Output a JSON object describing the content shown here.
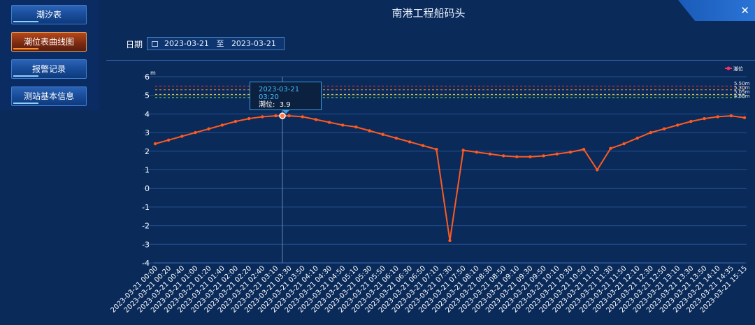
{
  "sidebar": {
    "items": [
      {
        "label": "潮汐表",
        "active": false
      },
      {
        "label": "潮位表曲线图",
        "active": true
      },
      {
        "label": "报警记录",
        "active": false
      },
      {
        "label": "测站基本信息",
        "active": false
      }
    ]
  },
  "header": {
    "title": "南港工程船码头",
    "close": "✕"
  },
  "filter": {
    "date_label": "日期",
    "start": "2023-03-21",
    "sep": "至",
    "end": "2023-03-21"
  },
  "tooltip": {
    "time": "2023-03-21 03:20",
    "label": "潮位:",
    "value": "3.9"
  },
  "colors": {
    "bg": "#0a2a5a",
    "series": "#ff5a1f",
    "accent": "#3ec0ff"
  },
  "chart_data": {
    "type": "line",
    "ylabel": "m",
    "ylim": [
      -4,
      6
    ],
    "yticks": [
      -4,
      -3,
      -2,
      -1,
      0,
      1,
      2,
      3,
      4,
      5,
      6
    ],
    "grid": true,
    "legend": {
      "position": "top-right",
      "entries": [
        "潮位"
      ]
    },
    "thresholds": [
      {
        "label": "5.50m",
        "value": 5.5,
        "color": "#ff3030"
      },
      {
        "label": "5.30m",
        "value": 5.3,
        "color": "#ff8c1a"
      },
      {
        "label": "5.05m",
        "value": 5.05,
        "color": "#ffd21a"
      },
      {
        "label": "4.88m",
        "value": 4.88,
        "color": "#7fe04a"
      }
    ],
    "x_tick_labels": [
      "2023-03-21 00:00",
      "2023-03-21 00:20",
      "2023-03-21 00:40",
      "2023-03-21 01:00",
      "2023-03-21 01:20",
      "2023-03-21 01:40",
      "2023-03-21 02:00",
      "2023-03-21 02:20",
      "2023-03-21 02:40",
      "2023-03-21 03:10",
      "2023-03-21 03:30",
      "2023-03-21 03:50",
      "2023-03-21 04:10",
      "2023-03-21 04:30",
      "2023-03-21 04:50",
      "2023-03-21 05:10",
      "2023-03-21 05:30",
      "2023-03-21 05:50",
      "2023-03-21 06:10",
      "2023-03-21 06:30",
      "2023-03-21 06:50",
      "2023-03-21 07:10",
      "2023-03-21 07:30",
      "2023-03-21 07:50",
      "2023-03-21 08:10",
      "2023-03-21 08:30",
      "2023-03-21 08:50",
      "2023-03-21 09:10",
      "2023-03-21 09:30",
      "2023-03-21 09:50",
      "2023-03-21 10:10",
      "2023-03-21 10:30",
      "2023-03-21 10:50",
      "2023-03-21 11:10",
      "2023-03-21 11:30",
      "2023-03-21 11:50",
      "2023-03-21 12:10",
      "2023-03-21 12:30",
      "2023-03-21 12:50",
      "2023-03-21 13:10",
      "2023-03-21 13:30",
      "2023-03-21 13:50",
      "2023-03-21 14:10",
      "2023-03-21 14:35",
      "2023-03-21 15:15"
    ],
    "series": [
      {
        "name": "潮位",
        "values": [
          2.4,
          2.6,
          2.8,
          3.0,
          3.2,
          3.4,
          3.6,
          3.75,
          3.85,
          3.9,
          3.9,
          3.85,
          3.7,
          3.55,
          3.4,
          3.3,
          3.1,
          2.9,
          2.7,
          2.5,
          2.3,
          2.1,
          -2.8,
          2.05,
          1.95,
          1.85,
          1.75,
          1.7,
          1.7,
          1.75,
          1.85,
          1.95,
          2.1,
          1.0,
          2.15,
          2.4,
          2.7,
          3.0,
          3.2,
          3.4,
          3.6,
          3.75,
          3.85,
          3.9,
          3.8
        ]
      }
    ]
  }
}
